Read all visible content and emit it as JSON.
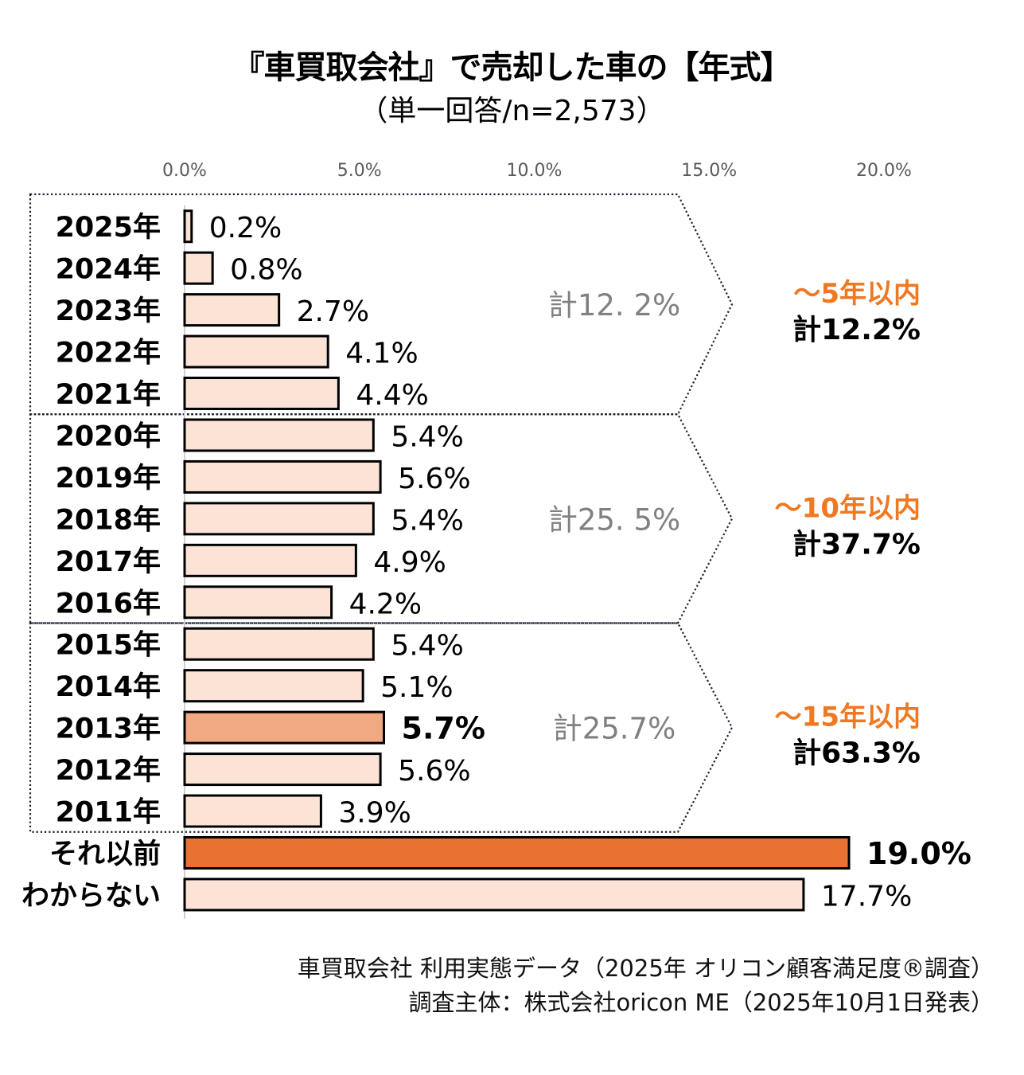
{
  "chart_data": {
    "type": "bar",
    "orientation": "horizontal",
    "title": "『車買取会社』で売却した車の【年式】",
    "subtitle": "（単一回答/n=2,573）",
    "xlabel": "",
    "ylabel": "",
    "xlim": [
      0,
      20
    ],
    "x_ticks": [
      "0.0%",
      "5.0%",
      "10.0%",
      "15.0%",
      "20.0%"
    ],
    "x_tick_values": [
      0,
      5,
      10,
      15,
      20
    ],
    "grid": false,
    "categories": [
      "2025年",
      "2024年",
      "2023年",
      "2022年",
      "2021年",
      "2020年",
      "2019年",
      "2018年",
      "2017年",
      "2016年",
      "2015年",
      "2014年",
      "2013年",
      "2012年",
      "2011年",
      "それ以前",
      "わからない"
    ],
    "values": [
      0.2,
      0.8,
      2.7,
      4.1,
      4.4,
      5.4,
      5.6,
      5.4,
      4.9,
      4.2,
      5.4,
      5.1,
      5.7,
      5.6,
      3.9,
      19.0,
      17.7
    ],
    "value_labels": [
      "0.2%",
      "0.8%",
      "2.7%",
      "4.1%",
      "4.4%",
      "5.4%",
      "5.6%",
      "5.4%",
      "4.9%",
      "4.2%",
      "5.4%",
      "5.1%",
      "5.7%",
      "5.6%",
      "3.9%",
      "19.0%",
      "17.7%"
    ],
    "bar_styles": [
      "light",
      "light",
      "light",
      "light",
      "light",
      "light",
      "light",
      "light",
      "light",
      "light",
      "light",
      "light",
      "medium",
      "light",
      "light",
      "dark",
      "light"
    ],
    "bold_labels": [
      false,
      false,
      false,
      false,
      false,
      false,
      false,
      false,
      false,
      false,
      false,
      false,
      true,
      false,
      false,
      true,
      false
    ],
    "colors": {
      "light": "#fbe3d6",
      "medium": "#f1a982",
      "dark": "#e97132",
      "outline": "#000000",
      "group_total": "#808080",
      "cumulative_label": "#f07820"
    },
    "groups": [
      {
        "start": 0,
        "end": 4,
        "group_total": "計12. 2%",
        "cumulative_label": "～5年以内",
        "cumulative_total": "計12.2%"
      },
      {
        "start": 5,
        "end": 9,
        "group_total": "計25. 5%",
        "cumulative_label": "～10年以内",
        "cumulative_total": "計37.7%"
      },
      {
        "start": 10,
        "end": 14,
        "group_total": "計25.7%",
        "cumulative_label": "～15年以内",
        "cumulative_total": "計63.3%"
      }
    ]
  },
  "footer": {
    "line1": "車買取会社 利用実態データ（2025年 オリコン顧客満足度®調査）",
    "line2": "調査主体：株式会社oricon ME（2025年10月1日発表）"
  }
}
